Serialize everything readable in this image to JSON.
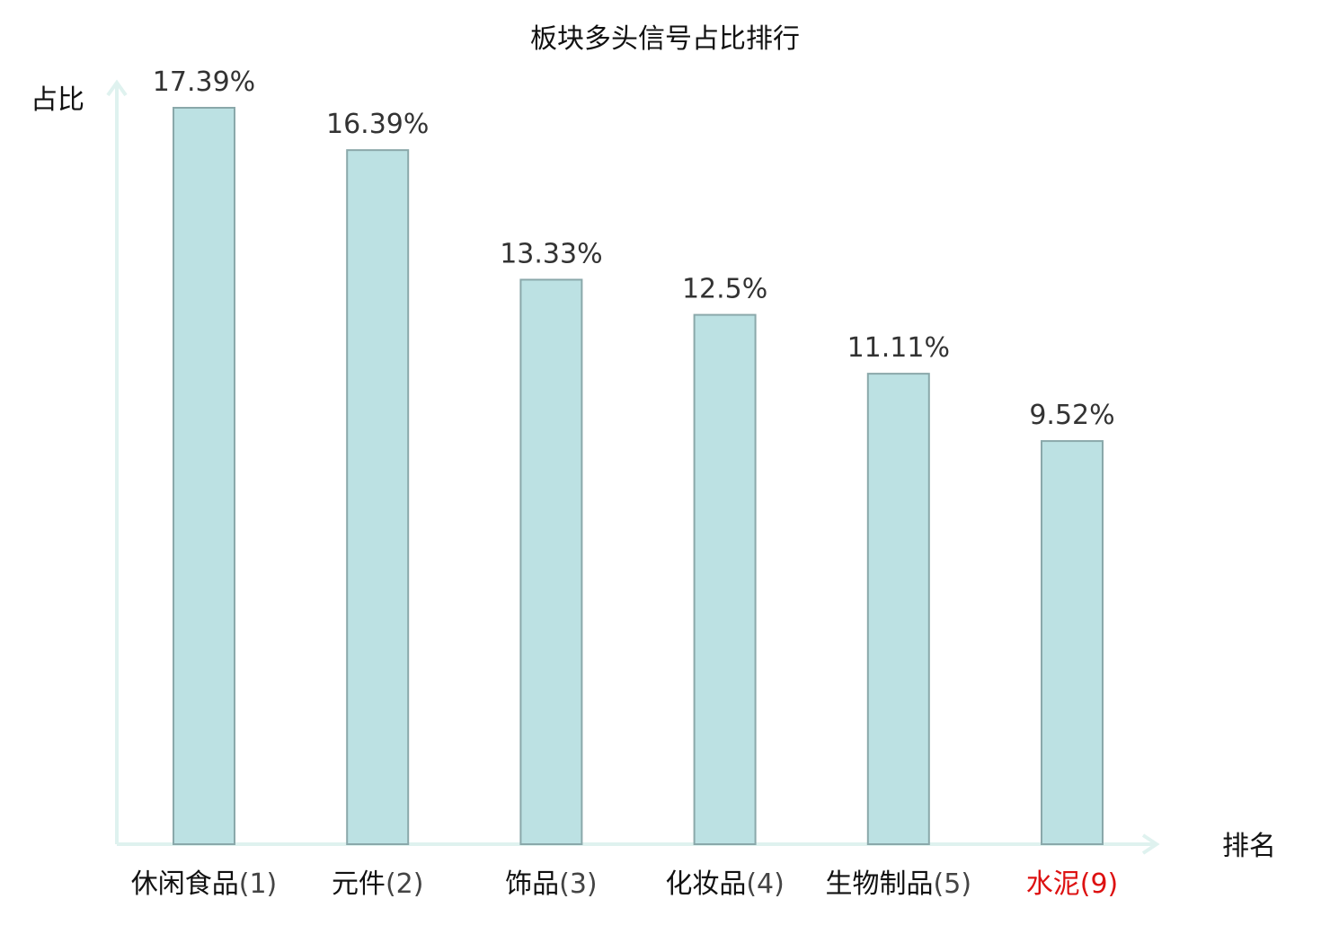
{
  "chart_data": {
    "type": "bar",
    "title": "板块多头信号占比排行",
    "ylabel": "占比",
    "xlabel": "排名",
    "categories": [
      {
        "name": "休闲食品",
        "rank": "(1)",
        "highlight": false
      },
      {
        "name": "元件",
        "rank": "(2)",
        "highlight": false
      },
      {
        "name": "饰品",
        "rank": "(3)",
        "highlight": false
      },
      {
        "name": "化妆品",
        "rank": "(4)",
        "highlight": false
      },
      {
        "name": "生物制品",
        "rank": "(5)",
        "highlight": false
      },
      {
        "name": "水泥",
        "rank": "(9)",
        "highlight": true
      }
    ],
    "values": [
      17.39,
      16.39,
      13.33,
      12.5,
      11.11,
      9.52
    ],
    "value_labels": [
      "17.39%",
      "16.39%",
      "13.33%",
      "12.5%",
      "11.11%",
      "9.52%"
    ],
    "ylim": [
      0,
      17.39
    ],
    "grid": false,
    "colors": {
      "bar_fill": "#bce1e3",
      "bar_stroke": "#8aa8aa",
      "axis": "#dff2ef",
      "category_text": "#111111",
      "rank_text": "#444444",
      "highlight_text": "#dd1111"
    }
  }
}
